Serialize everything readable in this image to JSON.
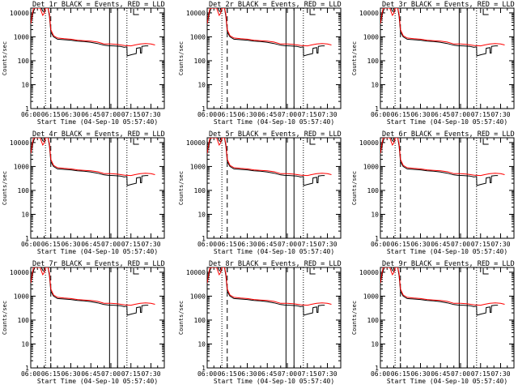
{
  "figure": {
    "colors": {
      "events": "#000000",
      "lld": "#ff0000",
      "axis": "#000000",
      "background": "#ffffff"
    }
  },
  "chart_data": [
    {
      "type": "line",
      "title": "Det 1r BLACK = Events, RED = LLD",
      "xlabel": "Start Time (04-Sep-10 05:57:40)",
      "ylabel": "Counts/sec",
      "x_ticks": [
        "06:00",
        "06:15",
        "06:30",
        "06:45",
        "07:00",
        "07:15",
        "07:30"
      ],
      "y_ticks": [
        "1",
        "10",
        "100",
        "1000",
        "10000"
      ],
      "xlim_min": [
        0,
        100
      ],
      "ylim_log10": [
        0,
        4.2
      ],
      "dotted_lines_min": [
        11,
        72
      ],
      "dashed_lines_min": [
        15
      ],
      "solid_lines_min": [
        59,
        65
      ],
      "series": [
        {
          "name": "Events",
          "color": "#000000"
        },
        {
          "name": "LLD",
          "color": "#ff0000"
        }
      ]
    },
    {
      "type": "line",
      "title": "Det 2r BLACK = Events, RED = LLD",
      "xlabel": "Start Time (04-Sep-10 05:57:40)",
      "ylabel": "Counts/sec",
      "x_ticks": [
        "06:00",
        "06:15",
        "06:30",
        "06:45",
        "07:00",
        "07:15",
        "07:30"
      ],
      "y_ticks": [
        "1",
        "10",
        "100",
        "1000",
        "10000"
      ],
      "xlim_min": [
        0,
        100
      ],
      "ylim_log10": [
        0,
        4.2
      ],
      "dotted_lines_min": [
        11,
        72
      ],
      "dashed_lines_min": [
        15
      ],
      "solid_lines_min": [
        59,
        65
      ],
      "series": [
        {
          "name": "Events",
          "color": "#000000"
        },
        {
          "name": "LLD",
          "color": "#ff0000"
        }
      ]
    },
    {
      "type": "line",
      "title": "Det 3r BLACK = Events, RED = LLD",
      "xlabel": "Start Time (04-Sep-10 05:57:40)",
      "ylabel": "Counts/sec",
      "x_ticks": [
        "06:00",
        "06:15",
        "06:30",
        "06:45",
        "07:00",
        "07:15",
        "07:30"
      ],
      "y_ticks": [
        "1",
        "10",
        "100",
        "1000",
        "10000"
      ],
      "xlim_min": [
        0,
        100
      ],
      "ylim_log10": [
        0,
        4.2
      ],
      "dotted_lines_min": [
        11,
        72
      ],
      "dashed_lines_min": [
        15
      ],
      "solid_lines_min": [
        59,
        65
      ],
      "series": [
        {
          "name": "Events",
          "color": "#000000"
        },
        {
          "name": "LLD",
          "color": "#ff0000"
        }
      ]
    },
    {
      "type": "line",
      "title": "Det 4r BLACK = Events, RED = LLD",
      "xlabel": "Start Time (04-Sep-10 05:57:40)",
      "ylabel": "Counts/sec",
      "x_ticks": [
        "06:00",
        "06:15",
        "06:30",
        "06:45",
        "07:00",
        "07:15",
        "07:30"
      ],
      "y_ticks": [
        "1",
        "10",
        "100",
        "1000",
        "10000"
      ],
      "xlim_min": [
        0,
        100
      ],
      "ylim_log10": [
        0,
        4.2
      ],
      "dotted_lines_min": [
        11,
        72
      ],
      "dashed_lines_min": [
        15
      ],
      "solid_lines_min": [
        59,
        65
      ],
      "series": [
        {
          "name": "Events",
          "color": "#000000"
        },
        {
          "name": "LLD",
          "color": "#ff0000"
        }
      ]
    },
    {
      "type": "line",
      "title": "Det 5r BLACK = Events, RED = LLD",
      "xlabel": "Start Time (04-Sep-10 05:57:40)",
      "ylabel": "Counts/sec",
      "x_ticks": [
        "06:00",
        "06:15",
        "06:30",
        "06:45",
        "07:00",
        "07:15",
        "07:30"
      ],
      "y_ticks": [
        "1",
        "10",
        "100",
        "1000",
        "10000"
      ],
      "xlim_min": [
        0,
        100
      ],
      "ylim_log10": [
        0,
        4.2
      ],
      "dotted_lines_min": [
        11,
        72
      ],
      "dashed_lines_min": [
        15
      ],
      "solid_lines_min": [
        59,
        65
      ],
      "series": [
        {
          "name": "Events",
          "color": "#000000"
        },
        {
          "name": "LLD",
          "color": "#ff0000"
        }
      ]
    },
    {
      "type": "line",
      "title": "Det 6r BLACK = Events, RED = LLD",
      "xlabel": "Start Time (04-Sep-10 05:57:40)",
      "ylabel": "Counts/sec",
      "x_ticks": [
        "06:00",
        "06:15",
        "06:30",
        "06:45",
        "07:00",
        "07:15",
        "07:30"
      ],
      "y_ticks": [
        "1",
        "10",
        "100",
        "1000",
        "10000"
      ],
      "xlim_min": [
        0,
        100
      ],
      "ylim_log10": [
        0,
        4.2
      ],
      "dotted_lines_min": [
        11,
        72
      ],
      "dashed_lines_min": [
        15
      ],
      "solid_lines_min": [
        59,
        65
      ],
      "series": [
        {
          "name": "Events",
          "color": "#000000"
        },
        {
          "name": "LLD",
          "color": "#ff0000"
        }
      ]
    },
    {
      "type": "line",
      "title": "Det 7r BLACK = Events, RED = LLD",
      "xlabel": "Start Time (04-Sep-10 05:57:40)",
      "ylabel": "Counts/sec",
      "x_ticks": [
        "06:00",
        "06:15",
        "06:30",
        "06:45",
        "07:00",
        "07:15",
        "07:30"
      ],
      "y_ticks": [
        "1",
        "10",
        "100",
        "1000",
        "10000"
      ],
      "xlim_min": [
        0,
        100
      ],
      "ylim_log10": [
        0,
        4.2
      ],
      "dotted_lines_min": [
        11,
        72
      ],
      "dashed_lines_min": [
        15
      ],
      "solid_lines_min": [
        59,
        65
      ],
      "series": [
        {
          "name": "Events",
          "color": "#000000"
        },
        {
          "name": "LLD",
          "color": "#ff0000"
        }
      ]
    },
    {
      "type": "line",
      "title": "Det 8r BLACK = Events, RED = LLD",
      "xlabel": "Start Time (04-Sep-10 05:57:40)",
      "ylabel": "Counts/sec",
      "x_ticks": [
        "06:00",
        "06:15",
        "06:30",
        "06:45",
        "07:00",
        "07:15",
        "07:30"
      ],
      "y_ticks": [
        "1",
        "10",
        "100",
        "1000",
        "10000"
      ],
      "xlim_min": [
        0,
        100
      ],
      "ylim_log10": [
        0,
        4.2
      ],
      "dotted_lines_min": [
        11,
        72
      ],
      "dashed_lines_min": [
        15
      ],
      "solid_lines_min": [
        59,
        65
      ],
      "series": [
        {
          "name": "Events",
          "color": "#000000"
        },
        {
          "name": "LLD",
          "color": "#ff0000"
        }
      ]
    },
    {
      "type": "line",
      "title": "Det 9r BLACK = Events, RED = LLD",
      "xlabel": "Start Time (04-Sep-10 05:57:40)",
      "ylabel": "Counts/sec",
      "x_ticks": [
        "06:00",
        "06:15",
        "06:30",
        "06:45",
        "07:00",
        "07:15",
        "07:30"
      ],
      "y_ticks": [
        "1",
        "10",
        "100",
        "1000",
        "10000"
      ],
      "xlim_min": [
        0,
        100
      ],
      "ylim_log10": [
        0,
        4.2
      ],
      "dotted_lines_min": [
        11,
        72
      ],
      "dashed_lines_min": [
        15
      ],
      "solid_lines_min": [
        59,
        65
      ],
      "series": [
        {
          "name": "Events",
          "color": "#000000"
        },
        {
          "name": "LLD",
          "color": "#ff0000"
        }
      ]
    }
  ],
  "series_samples": {
    "events": [
      [
        0,
        3.55
      ],
      [
        1,
        3.85
      ],
      [
        2,
        4.05
      ],
      [
        3,
        4.2
      ],
      [
        8,
        4.2
      ],
      [
        9,
        4.08
      ],
      [
        10,
        4.04
      ],
      [
        10.8,
        4.05
      ],
      [
        11,
        4.2
      ],
      [
        13,
        4.2
      ],
      [
        14,
        3.85
      ],
      [
        15,
        3.2
      ],
      [
        17,
        3.0
      ],
      [
        20,
        2.9
      ],
      [
        25,
        2.88
      ],
      [
        30,
        2.86
      ],
      [
        35,
        2.82
      ],
      [
        40,
        2.8
      ],
      [
        45,
        2.77
      ],
      [
        50,
        2.72
      ],
      [
        55,
        2.65
      ],
      [
        58,
        2.63
      ],
      [
        62,
        2.62
      ],
      [
        67,
        2.6
      ],
      [
        70,
        2.56
      ],
      [
        72,
        2.58
      ],
      [
        72.2,
        2.2
      ],
      [
        75,
        2.25
      ],
      [
        79,
        2.3
      ],
      [
        79.2,
        2.52
      ],
      [
        82,
        2.55
      ],
      [
        82.2,
        2.32
      ],
      [
        83,
        2.32
      ],
      [
        83.2,
        2.6
      ],
      [
        86,
        2.62
      ],
      [
        88,
        2.62
      ]
    ],
    "lld": [
      [
        0,
        3.55
      ],
      [
        1,
        3.9
      ],
      [
        2,
        4.2
      ],
      [
        7,
        4.2
      ],
      [
        8,
        4.05
      ],
      [
        9,
        3.9
      ],
      [
        10,
        3.98
      ],
      [
        11,
        4.2
      ],
      [
        13,
        4.2
      ],
      [
        14,
        3.95
      ],
      [
        15,
        3.3
      ],
      [
        17,
        3.05
      ],
      [
        20,
        2.95
      ],
      [
        25,
        2.92
      ],
      [
        30,
        2.9
      ],
      [
        35,
        2.86
      ],
      [
        40,
        2.84
      ],
      [
        45,
        2.82
      ],
      [
        50,
        2.78
      ],
      [
        55,
        2.7
      ],
      [
        60,
        2.7
      ],
      [
        65,
        2.68
      ],
      [
        70,
        2.64
      ],
      [
        75,
        2.62
      ],
      [
        78,
        2.66
      ],
      [
        82,
        2.7
      ],
      [
        86,
        2.72
      ],
      [
        90,
        2.7
      ],
      [
        93,
        2.66
      ]
    ]
  }
}
